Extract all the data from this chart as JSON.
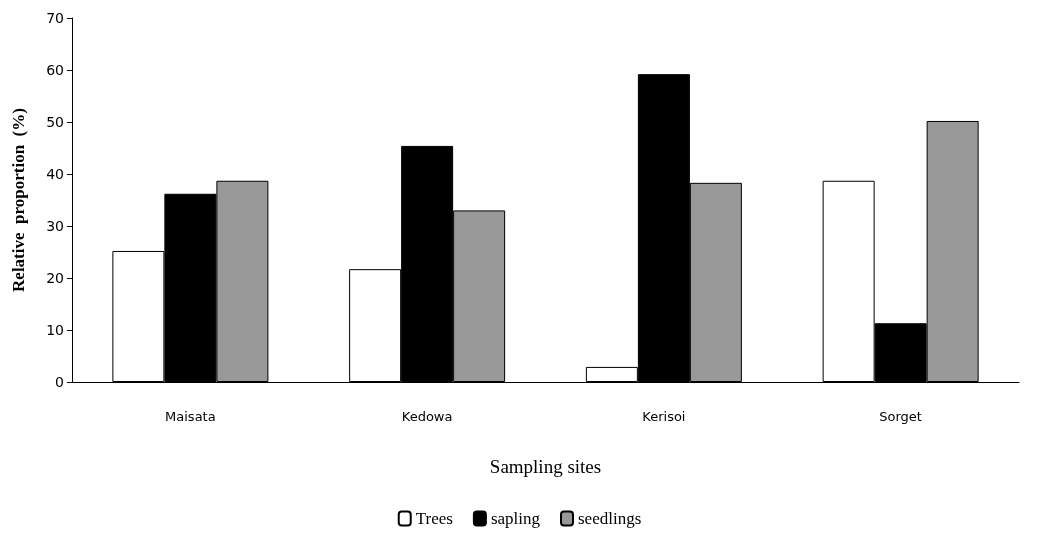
{
  "chart_data": {
    "type": "bar",
    "xlabel": "Sampling sites",
    "ylabel": "Relative  proportion  (%)",
    "categories": [
      "Maisata",
      "Kedowa",
      "Kerisoi",
      "Sorget"
    ],
    "series": [
      {
        "name": "Trees",
        "color": "#ffffff",
        "values": [
          25.2,
          21.7,
          2.9,
          38.7
        ]
      },
      {
        "name": "sapling",
        "color": "#000000",
        "values": [
          36.2,
          45.4,
          59.2,
          11.3
        ]
      },
      {
        "name": "seedlings",
        "color": "#999999",
        "values": [
          38.7,
          33,
          38.3,
          50.2
        ]
      }
    ],
    "ylim": [
      0,
      70
    ],
    "yticks": [
      0,
      10,
      20,
      30,
      40,
      50,
      60,
      70
    ],
    "grid": false,
    "legend": "bottom"
  }
}
